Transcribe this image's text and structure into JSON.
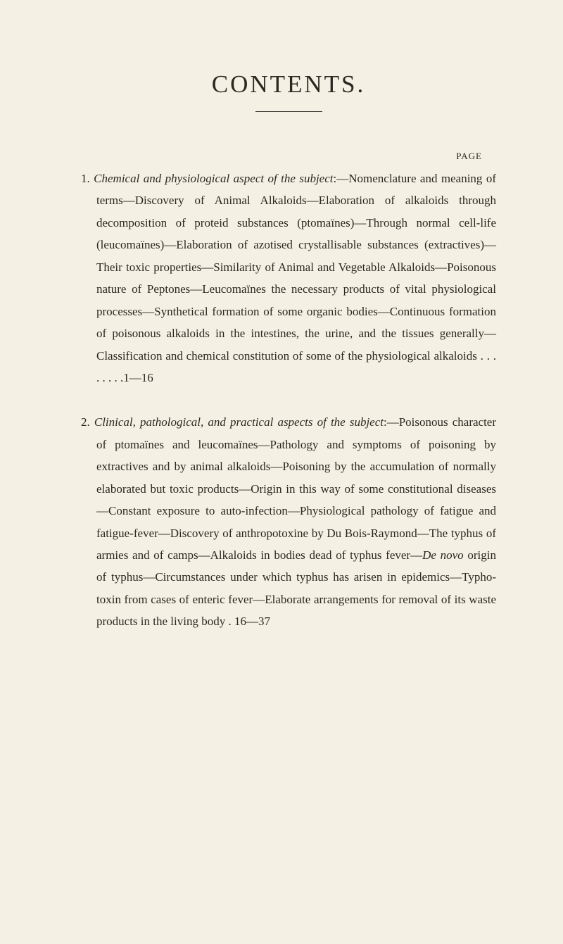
{
  "title": "CONTENTS.",
  "page_label": "PAGE",
  "entries": [
    {
      "number": "1.",
      "italic_title": "Chemical and physiological aspect of the subject",
      "body": ":—Nomenclature and meaning of terms—Discovery of Animal Alkaloids—Elaboration of alkaloids through decomposition of proteid substances (ptomaïnes)—Through normal cell-life (leucomaïnes)—Elaboration of azotised crystallisable substances (extractives)—Their toxic properties—Similarity of Animal and Vegetable Alkaloids—Poisonous nature of Peptones—Leucomaïnes the necessary products of vital physiological processes—Synthetical formation of some organic bodies—Continuous formation of poisonous alkaloids in the intestines, the urine, and the tissues generally—Classification and chemical constitution of some of the physiological alkaloids .   .   .   .   .   .   .   .",
      "page_range": "1—16"
    },
    {
      "number": "2.",
      "italic_title": "Clinical, pathological, and practical aspects of the subject",
      "body": ":—Poisonous character of ptomaïnes and leucomaïnes—Pathology and symptoms of poisoning by extractives and by animal alkaloids—Poisoning by the accumulation of normally elaborated but toxic products—Origin in this way of some constitutional diseases—Constant exposure to auto-infection—Physiological pathology of fatigue and fatigue-fever—Discovery of anthropotoxine by Du Bois-Raymond—The typhus of armies and of camps—Alkaloids in bodies dead of typhus fever—",
      "italic_mid": "De novo",
      "body2": " origin of typhus—Circumstances under which typhus has arisen in epidemics—Typho-toxin from cases of enteric fever—Elaborate arrangements for removal of its waste products in the living body",
      "page_range": ". 16—37"
    }
  ]
}
